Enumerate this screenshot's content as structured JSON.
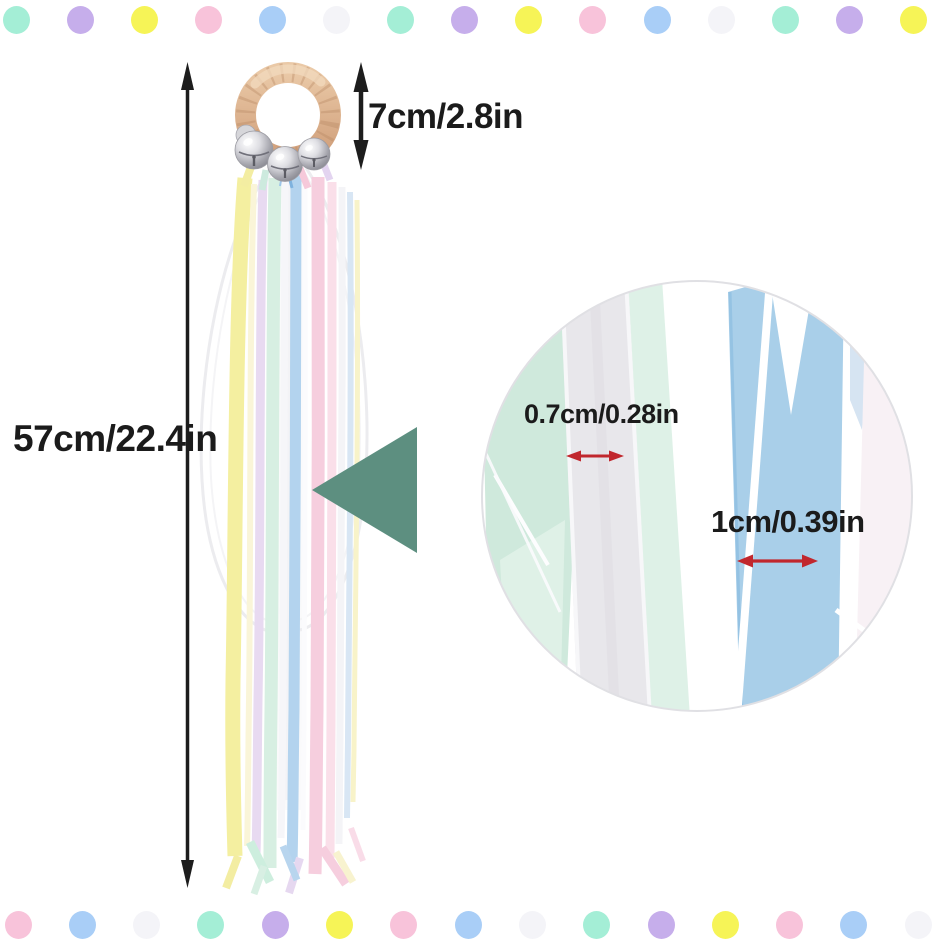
{
  "labels": {
    "total_length": "57cm/22.4in",
    "ring_size": "7cm/2.8in",
    "ribbon_width_small": "0.7cm/0.28in",
    "ribbon_width_large": "1cm/0.39in"
  },
  "colors": {
    "text": "#1b1b1b",
    "arrow_black": "#1d1d1d",
    "measure_red": "#c1272d",
    "triangle_teal": "#5d8f80",
    "circle_rim": "#e0e0e4",
    "ring_wood": "#d9ab87",
    "bell_silver": "#c9c9cf",
    "mint": "#a4eed6",
    "lavender": "#c6aeeb",
    "yellow": "#f6f457",
    "pink": "#f8c3da",
    "blue": "#a9cef7",
    "white_dot": "#f4f4f8"
  },
  "decor": {
    "top_dots": [
      "mint",
      "lavender",
      "yellow",
      "pink",
      "blue",
      "white_dot",
      "mint",
      "lavender",
      "yellow",
      "pink",
      "blue",
      "white_dot",
      "mint",
      "lavender",
      "yellow"
    ],
    "bottom_dots": [
      "pink",
      "blue",
      "white_dot",
      "mint",
      "lavender",
      "yellow",
      "pink",
      "blue",
      "white_dot",
      "mint",
      "lavender",
      "yellow",
      "pink",
      "blue",
      "white_dot"
    ]
  }
}
